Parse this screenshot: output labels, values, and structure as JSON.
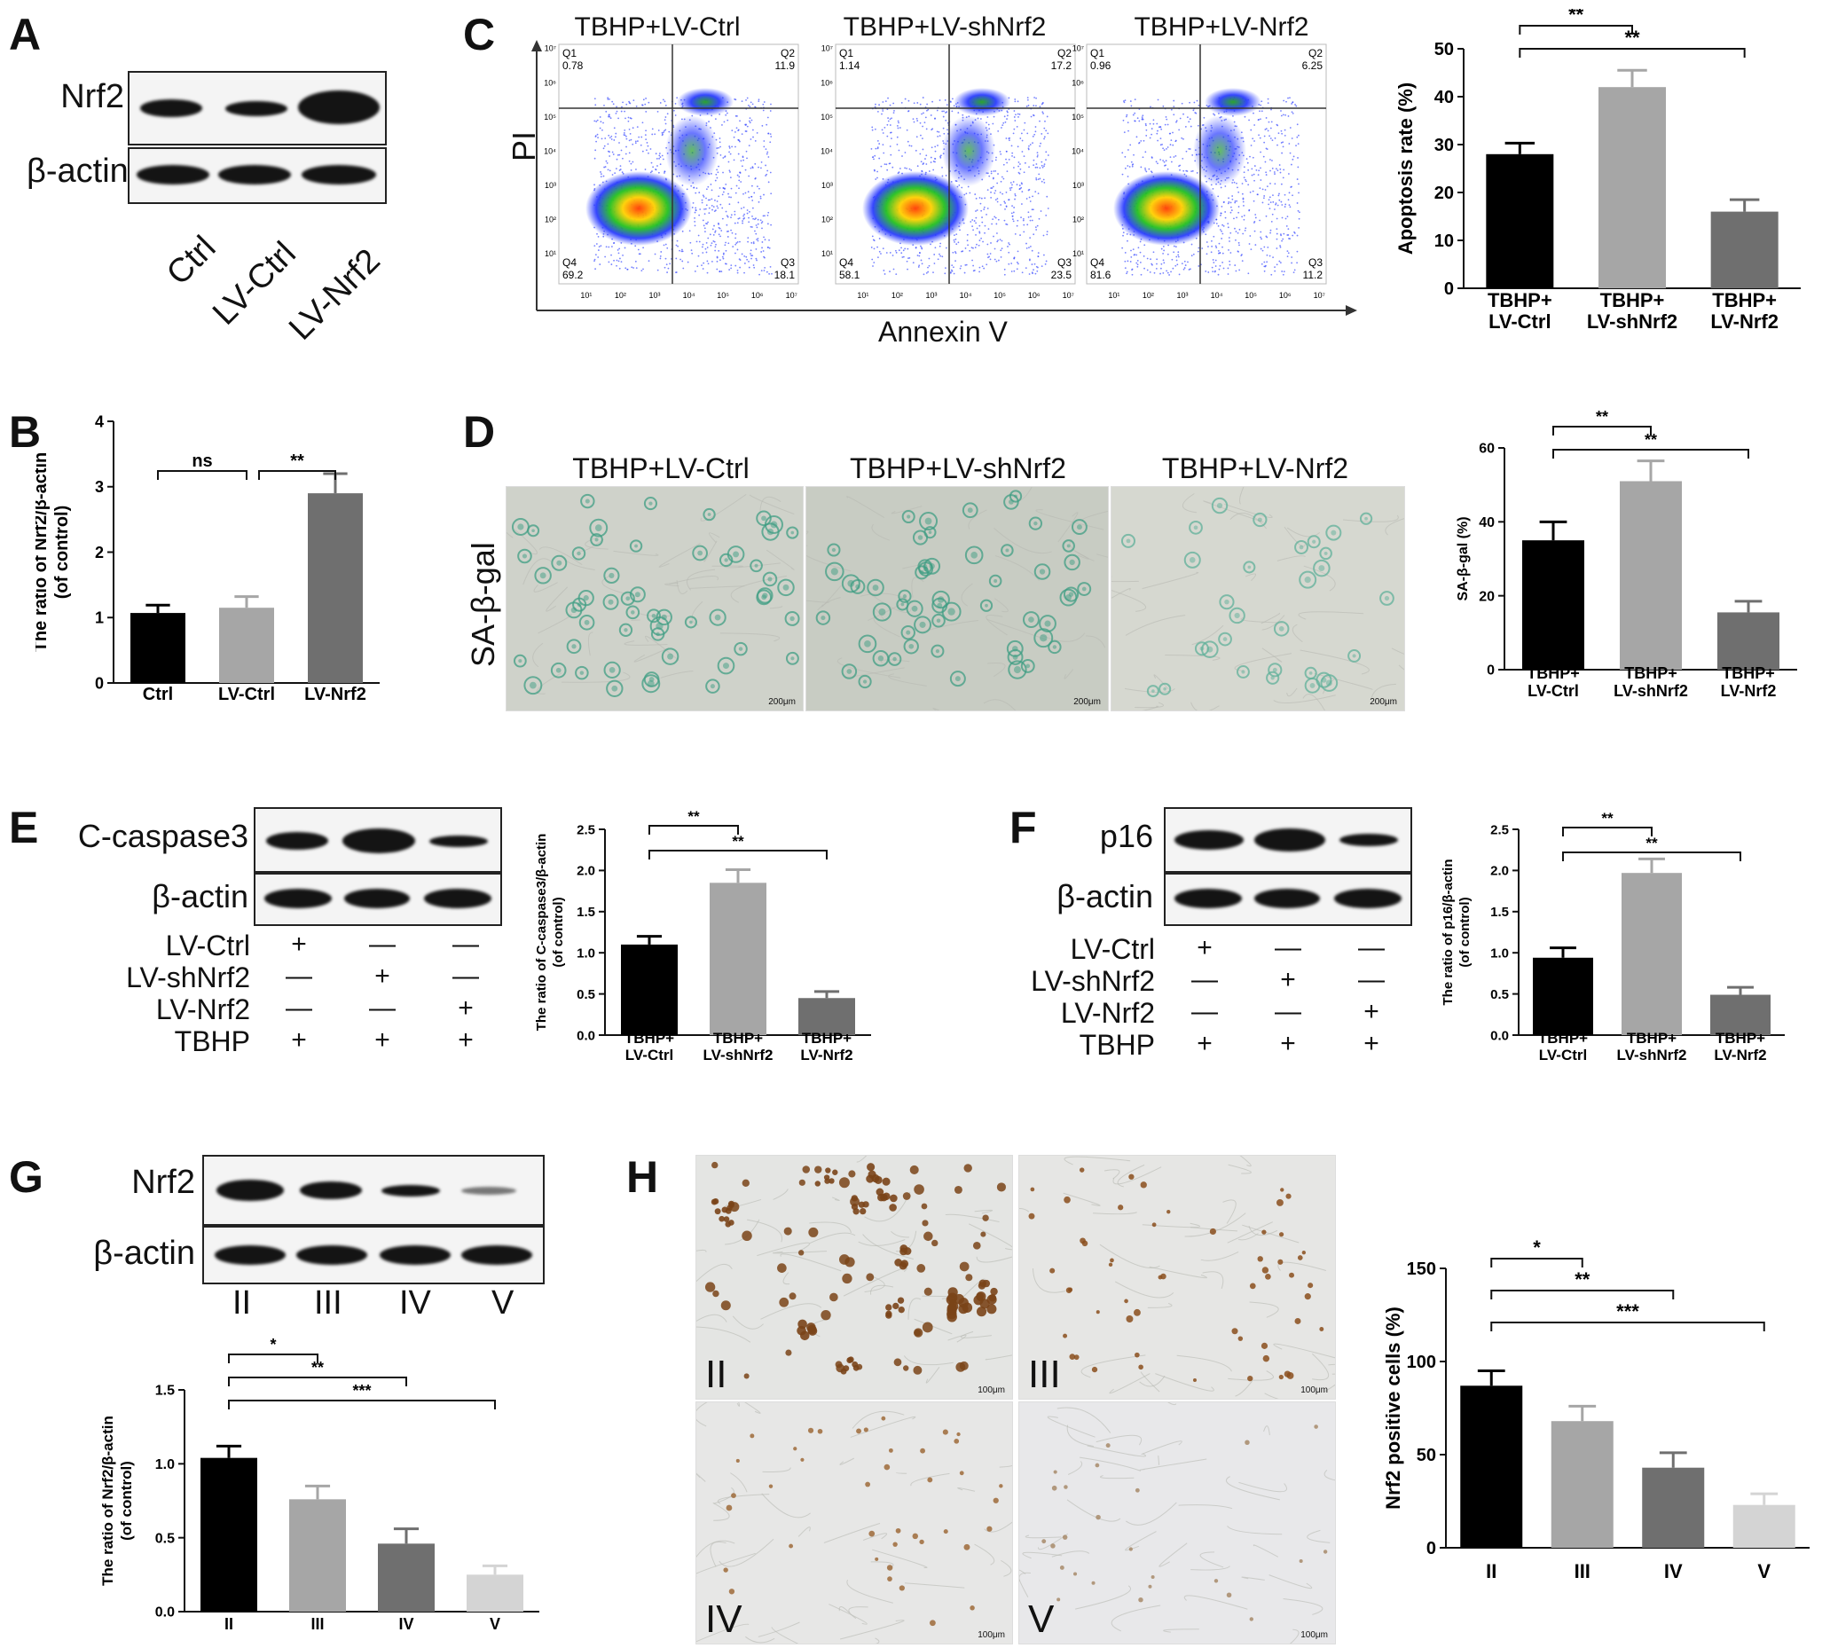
{
  "panels": {
    "A": {
      "letter": "A",
      "rows": [
        "Nrf2",
        "β-actin"
      ],
      "lanes": [
        "Ctrl",
        "LV-Ctrl",
        "LV-Nrf2"
      ]
    },
    "B": {
      "letter": "B",
      "sig_ns": "ns",
      "sig_2": "**"
    },
    "C": {
      "letter": "C",
      "flow_titles": [
        "TBHP+LV-Ctrl",
        "TBHP+LV-shNrf2",
        "TBHP+LV-Nrf2"
      ],
      "y_axis": "PI",
      "x_axis": "Annexin V",
      "quadrants": [
        {
          "q1": "Q1",
          "q1v": "0.78",
          "q2": "Q2",
          "q2v": "11.9",
          "q3": "Q3",
          "q3v": "18.1",
          "q4": "Q4",
          "q4v": "69.2"
        },
        {
          "q1": "Q1",
          "q1v": "1.14",
          "q2": "Q2",
          "q2v": "17.2",
          "q3": "Q3",
          "q3v": "23.5",
          "q4": "Q4",
          "q4v": "58.1"
        },
        {
          "q1": "Q1",
          "q1v": "0.96",
          "q2": "Q2",
          "q2v": "6.25",
          "q3": "Q3",
          "q3v": "11.2",
          "q4": "Q4",
          "q4v": "81.6"
        }
      ],
      "flow_tick_labels": [
        "10⁰",
        "10¹",
        "10²",
        "10³",
        "10⁴",
        "10⁵",
        "10⁶",
        "10⁷"
      ]
    },
    "D": {
      "letter": "D",
      "titles": [
        "TBHP+LV-Ctrl",
        "TBHP+LV-shNrf2",
        "TBHP+LV-Nrf2"
      ],
      "row_label": "SA-β-gal",
      "scale": "200μm"
    },
    "E": {
      "letter": "E",
      "rows": [
        "C-caspase3",
        "β-actin"
      ],
      "conditions": [
        "LV-Ctrl",
        "LV-shNrf2",
        "LV-Nrf2",
        "TBHP"
      ],
      "matrix": [
        [
          "+",
          "—",
          "—"
        ],
        [
          "—",
          "+",
          "—"
        ],
        [
          "—",
          "—",
          "+"
        ],
        [
          "+",
          "+",
          "+"
        ]
      ]
    },
    "F": {
      "letter": "F",
      "rows": [
        "p16",
        "β-actin"
      ],
      "conditions": [
        "LV-Ctrl",
        "LV-shNrf2",
        "LV-Nrf2",
        "TBHP"
      ],
      "matrix": [
        [
          "+",
          "—",
          "—"
        ],
        [
          "—",
          "+",
          "—"
        ],
        [
          "—",
          "—",
          "+"
        ],
        [
          "+",
          "+",
          "+"
        ]
      ]
    },
    "G": {
      "letter": "G",
      "rows": [
        "Nrf2",
        "β-actin"
      ],
      "lanes": [
        "II",
        "III",
        "IV",
        "V"
      ]
    },
    "H": {
      "letter": "H",
      "image_labels": [
        "II",
        "III",
        "IV",
        "V"
      ],
      "scale": "100μm"
    }
  },
  "chart_data": [
    {
      "id": "C-bar",
      "type": "bar",
      "categories": [
        "TBHP+\nLV-Ctrl",
        "TBHP+\nLV-shNrf2",
        "TBHP+\nLV-Nrf2"
      ],
      "values": [
        28,
        42,
        16
      ],
      "errors": [
        2.3,
        3.5,
        2.5
      ],
      "colors": [
        "#000000",
        "#a6a6a6",
        "#6f6f6f"
      ],
      "ylabel": "Apoptosis rate (%)",
      "ylim": [
        0,
        50
      ],
      "yticks": [
        "0",
        "10",
        "20",
        "30",
        "40",
        "50"
      ],
      "significance": [
        {
          "from": 0,
          "to": 1,
          "label": "**"
        },
        {
          "from": 0,
          "to": 2,
          "label": "**"
        }
      ]
    },
    {
      "id": "B-bar",
      "type": "bar",
      "categories": [
        "Ctrl",
        "LV-Ctrl",
        "LV-Nrf2"
      ],
      "values": [
        1.07,
        1.15,
        2.9
      ],
      "errors": [
        0.12,
        0.17,
        0.3
      ],
      "colors": [
        "#000000",
        "#a6a6a6",
        "#6f6f6f"
      ],
      "ylabel": "The ratio of Nrf2/β-actin\n(of control)",
      "ylim": [
        0,
        4
      ],
      "yticks": [
        "0",
        "1",
        "2",
        "3",
        "4"
      ],
      "significance": [
        {
          "from": 0,
          "to": 1,
          "label": "ns"
        },
        {
          "from": 1,
          "to": 2,
          "label": "**"
        }
      ]
    },
    {
      "id": "D-bar",
      "type": "bar",
      "categories": [
        "TBHP+\nLV-Ctrl",
        "TBHP+\nLV-shNrf2",
        "TBHP+\nLV-Nrf2"
      ],
      "values": [
        35,
        51,
        15.5
      ],
      "errors": [
        5,
        5.5,
        3
      ],
      "colors": [
        "#000000",
        "#a6a6a6",
        "#6f6f6f"
      ],
      "ylabel": "SA-β-gal (%)",
      "ylim": [
        0,
        60
      ],
      "yticks": [
        "0",
        "20",
        "40",
        "60"
      ],
      "significance": [
        {
          "from": 0,
          "to": 1,
          "label": "**"
        },
        {
          "from": 0,
          "to": 2,
          "label": "**"
        }
      ]
    },
    {
      "id": "E-bar",
      "type": "bar",
      "categories": [
        "TBHP+\nLV-Ctrl",
        "TBHP+\nLV-shNrf2",
        "TBHP+\nLV-Nrf2"
      ],
      "values": [
        1.1,
        1.85,
        0.45
      ],
      "errors": [
        0.1,
        0.16,
        0.08
      ],
      "colors": [
        "#000000",
        "#a6a6a6",
        "#6f6f6f"
      ],
      "ylabel": "The ratio of C-caspase3/β-actin\n(of control)",
      "ylim": [
        0,
        2.5
      ],
      "yticks": [
        "0.0",
        "0.5",
        "1.0",
        "1.5",
        "2.0",
        "2.5"
      ],
      "significance": [
        {
          "from": 0,
          "to": 1,
          "label": "**"
        },
        {
          "from": 0,
          "to": 2,
          "label": "**"
        }
      ]
    },
    {
      "id": "F-bar",
      "type": "bar",
      "categories": [
        "TBHP+\nLV-Ctrl",
        "TBHP+\nLV-shNrf2",
        "TBHP+\nLV-Nrf2"
      ],
      "values": [
        0.94,
        1.97,
        0.49
      ],
      "errors": [
        0.12,
        0.17,
        0.09
      ],
      "colors": [
        "#000000",
        "#a6a6a6",
        "#6f6f6f"
      ],
      "ylabel": "The ratio of p16/β-actin\n(of control)",
      "ylim": [
        0,
        2.5
      ],
      "yticks": [
        "0.0",
        "0.5",
        "1.0",
        "1.5",
        "2.0",
        "2.5"
      ],
      "significance": [
        {
          "from": 0,
          "to": 1,
          "label": "**"
        },
        {
          "from": 0,
          "to": 2,
          "label": "**"
        }
      ]
    },
    {
      "id": "G-bar",
      "type": "bar",
      "categories": [
        "II",
        "III",
        "IV",
        "V"
      ],
      "values": [
        1.04,
        0.76,
        0.46,
        0.25
      ],
      "errors": [
        0.08,
        0.09,
        0.1,
        0.06
      ],
      "colors": [
        "#000000",
        "#a6a6a6",
        "#6f6f6f",
        "#d4d4d4"
      ],
      "ylabel": "The ratio of Nrf2/β-actin\n(of control)",
      "ylim": [
        0,
        1.5
      ],
      "yticks": [
        "0.0",
        "0.5",
        "1.0",
        "1.5"
      ],
      "significance": [
        {
          "from": 0,
          "to": 1,
          "label": "*"
        },
        {
          "from": 0,
          "to": 2,
          "label": "**"
        },
        {
          "from": 0,
          "to": 3,
          "label": "***"
        }
      ]
    },
    {
      "id": "H-bar",
      "type": "bar",
      "categories": [
        "II",
        "III",
        "IV",
        "V"
      ],
      "values": [
        87,
        68,
        43,
        23
      ],
      "errors": [
        8,
        8,
        8,
        6
      ],
      "colors": [
        "#000000",
        "#a6a6a6",
        "#6f6f6f",
        "#d4d4d4"
      ],
      "ylabel": "Nrf2 positive cells (%)",
      "ylim": [
        0,
        150
      ],
      "yticks": [
        "0",
        "50",
        "100",
        "150"
      ],
      "significance": [
        {
          "from": 0,
          "to": 1,
          "label": "*"
        },
        {
          "from": 0,
          "to": 2,
          "label": "**"
        },
        {
          "from": 0,
          "to": 3,
          "label": "***"
        }
      ]
    }
  ]
}
